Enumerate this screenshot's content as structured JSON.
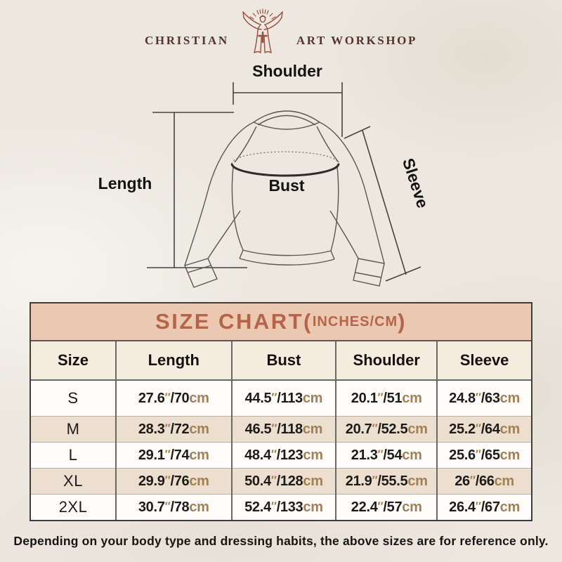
{
  "brand": {
    "name_left": "CHRISTIAN",
    "name_right": "ART WORKSHOP",
    "logo_color": "#9c4c3a",
    "text_color": "#56332a"
  },
  "diagram": {
    "labels": {
      "shoulder": "Shoulder",
      "length": "Length",
      "bust": "Bust",
      "sleeve": "Sleeve"
    }
  },
  "size_chart": {
    "title_main": "SIZE CHART(",
    "title_units": "INCHES/CM",
    "title_close": ")",
    "inch_mark": "″",
    "cm_label": "cm",
    "slash": "/",
    "columns": [
      "Size",
      "Length",
      "Bust",
      "Shoulder",
      "Sleeve"
    ],
    "rows": [
      {
        "size": "S",
        "cells": [
          [
            "27.6",
            "70"
          ],
          [
            "44.5",
            "113"
          ],
          [
            "20.1",
            "51"
          ],
          [
            "24.8",
            "63"
          ]
        ]
      },
      {
        "size": "M",
        "cells": [
          [
            "28.3",
            "72"
          ],
          [
            "46.5",
            "118"
          ],
          [
            "20.7",
            "52.5"
          ],
          [
            "25.2",
            "64"
          ]
        ]
      },
      {
        "size": "L",
        "cells": [
          [
            "29.1",
            "74"
          ],
          [
            "48.4",
            "123"
          ],
          [
            "21.3",
            "54"
          ],
          [
            "25.6",
            "65"
          ]
        ]
      },
      {
        "size": "XL",
        "cells": [
          [
            "29.9",
            "76"
          ],
          [
            "50.4",
            "128"
          ],
          [
            "21.9",
            "55.5"
          ],
          [
            "26",
            "66"
          ]
        ]
      },
      {
        "size": "2XL",
        "cells": [
          [
            "30.7",
            "78"
          ],
          [
            "52.4",
            "133"
          ],
          [
            "22.4",
            "57"
          ],
          [
            "26.4",
            "67"
          ]
        ]
      }
    ]
  },
  "disclaimer": "Depending on your body type and dressing habits, the above sizes are for reference only.",
  "colors": {
    "page_bg": "#ece8e0",
    "band_bg": "#edc8b1",
    "band_text": "#b4644a",
    "header_row_bg": "#f5ecdf",
    "alt_row_bg": "#ecdfd0",
    "white_row_bg": "#fefdfb",
    "unit_text": "#a28055",
    "line_color": "#45433e"
  },
  "chart_data": {
    "type": "table",
    "title": "SIZE CHART (INCHES/CM)",
    "columns": [
      "Size",
      "Length",
      "Bust",
      "Shoulder",
      "Sleeve"
    ],
    "rows": [
      [
        "S",
        "27.6\" / 70cm",
        "44.5\" / 113cm",
        "20.1\" / 51cm",
        "24.8\" / 63cm"
      ],
      [
        "M",
        "28.3\" / 72cm",
        "46.5\" / 118cm",
        "20.7\" / 52.5cm",
        "25.2\" / 64cm"
      ],
      [
        "L",
        "29.1\" / 74cm",
        "48.4\" / 123cm",
        "21.3\" / 54cm",
        "25.6\" / 65cm"
      ],
      [
        "XL",
        "29.9\" / 76cm",
        "50.4\" / 128cm",
        "21.9\" / 55.5cm",
        "26\" / 66cm"
      ],
      [
        "2XL",
        "30.7\" / 78cm",
        "52.4\" / 133cm",
        "22.4\" / 57cm",
        "26.4\" / 67cm"
      ]
    ]
  }
}
